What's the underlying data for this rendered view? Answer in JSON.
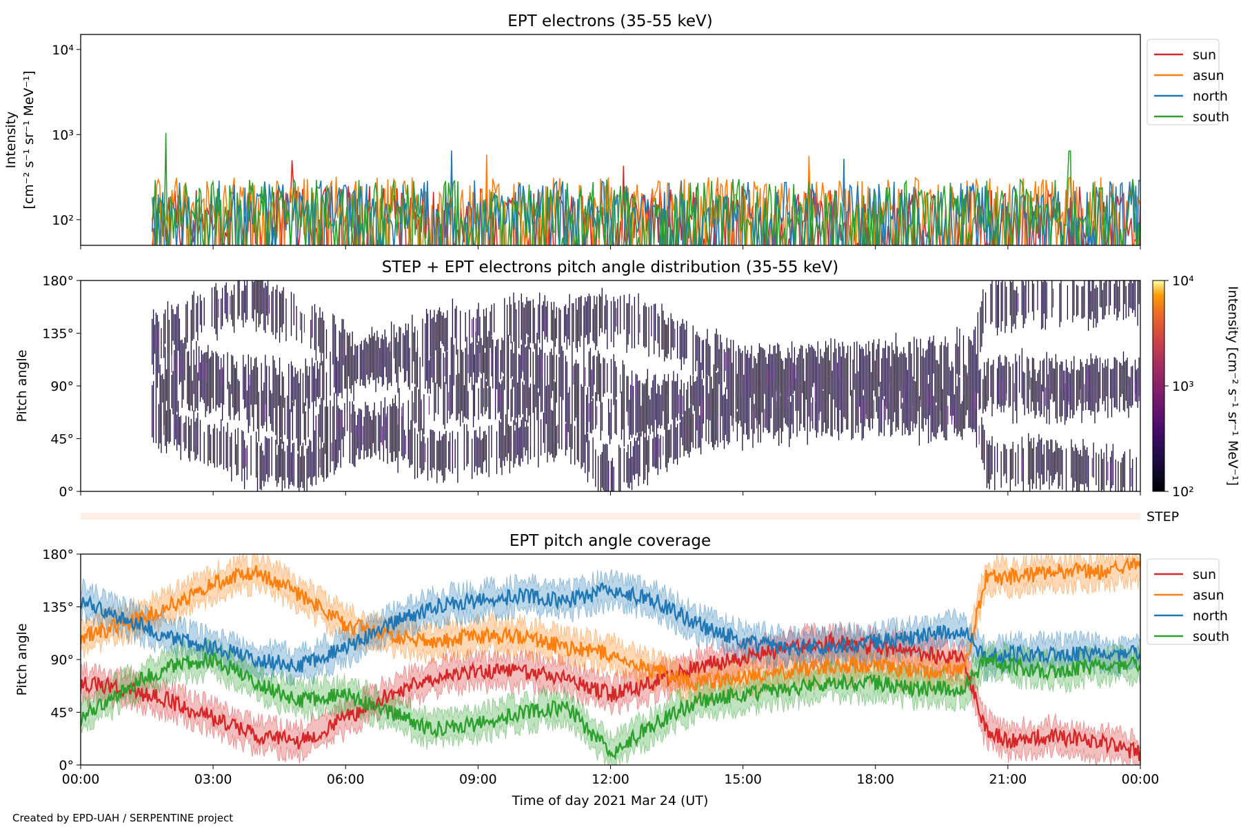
{
  "chart_data": [
    {
      "type": "line",
      "title": "EPT electrons (35-55 keV)",
      "ylabel_line1": "Intensity",
      "ylabel_line2": "[cm⁻² s⁻¹ sr⁻¹ MeV⁻¹]",
      "yscale": "log",
      "ylim": [
        50,
        15000
      ],
      "yticks": [
        100,
        1000,
        10000
      ],
      "ytick_labels": [
        "10²",
        "10³",
        "10⁴"
      ],
      "xlim_hours": [
        0,
        24
      ],
      "data_start_hour": 1.62,
      "series": [
        {
          "name": "sun",
          "color": "#d62728",
          "typical": [
            50,
            250
          ],
          "peaks": [
            [
              4.8,
              500
            ],
            [
              12.3,
              430
            ]
          ]
        },
        {
          "name": "asun",
          "color": "#ff7f0e",
          "typical": [
            80,
            320
          ],
          "peaks": [
            [
              9.2,
              580
            ],
            [
              16.5,
              560
            ]
          ]
        },
        {
          "name": "north",
          "color": "#1f77b4",
          "typical": [
            70,
            290
          ],
          "peaks": [
            [
              8.4,
              650
            ],
            [
              17.3,
              520
            ]
          ]
        },
        {
          "name": "south",
          "color": "#2ca02c",
          "typical": [
            60,
            300
          ],
          "peaks": [
            [
              1.93,
              1050
            ],
            [
              22.4,
              640
            ]
          ]
        }
      ],
      "legend": "outside-right"
    },
    {
      "type": "heatmap",
      "title": "STEP + EPT electrons pitch angle distribution (35-55 keV)",
      "ylabel": "Pitch angle",
      "ylim": [
        0,
        180
      ],
      "yticks": [
        0,
        45,
        90,
        135,
        180
      ],
      "ytick_labels": [
        "0°",
        "45°",
        "90°",
        "135°",
        "180°"
      ],
      "colorbar": {
        "label": "Intensity [cm⁻² s⁻¹ sr⁻¹ MeV⁻¹]",
        "scale": "log",
        "range": [
          100,
          10000
        ],
        "tick_labels": [
          "10²",
          "10³",
          "10⁴"
        ],
        "colormap": "inferno"
      },
      "step_label": "STEP"
    },
    {
      "type": "line",
      "title": "EPT pitch angle coverage",
      "ylabel": "Pitch angle",
      "ylim": [
        0,
        180
      ],
      "yticks": [
        0,
        45,
        90,
        135,
        180
      ],
      "ytick_labels": [
        "0°",
        "45°",
        "90°",
        "135°",
        "180°"
      ],
      "xlabel": "Time of day 2021 Mar 24 (UT)",
      "x_tick_labels": [
        "00:00",
        "03:00",
        "06:00",
        "09:00",
        "12:00",
        "15:00",
        "18:00",
        "21:00",
        "00:00"
      ],
      "hours": [
        0,
        1,
        2,
        3,
        4,
        5,
        6,
        7,
        8,
        9,
        10,
        11,
        12,
        13,
        14,
        15,
        16,
        17,
        18,
        19,
        20,
        20.5,
        21,
        22,
        23,
        24
      ],
      "series": [
        {
          "name": "sun",
          "color": "#d62728",
          "values": [
            70,
            65,
            55,
            40,
            25,
            20,
            40,
            60,
            75,
            80,
            80,
            75,
            60,
            70,
            85,
            90,
            100,
            105,
            100,
            95,
            90,
            30,
            20,
            25,
            20,
            10
          ]
        },
        {
          "name": "asun",
          "color": "#ff7f0e",
          "values": [
            110,
            120,
            135,
            155,
            165,
            145,
            120,
            110,
            105,
            110,
            110,
            100,
            95,
            80,
            70,
            75,
            80,
            85,
            85,
            80,
            80,
            160,
            160,
            165,
            165,
            170
          ]
        },
        {
          "name": "north",
          "color": "#1f77b4",
          "values": [
            140,
            125,
            110,
            100,
            90,
            85,
            100,
            120,
            135,
            140,
            145,
            140,
            150,
            140,
            120,
            105,
            100,
            100,
            105,
            110,
            115,
            90,
            95,
            95,
            95,
            95
          ]
        },
        {
          "name": "south",
          "color": "#2ca02c",
          "values": [
            40,
            65,
            85,
            90,
            70,
            55,
            60,
            45,
            30,
            35,
            45,
            50,
            10,
            35,
            55,
            60,
            65,
            70,
            70,
            65,
            65,
            90,
            85,
            80,
            85,
            85
          ]
        }
      ],
      "band_halfwidth_deg": 12,
      "legend": "outside-right"
    }
  ],
  "footer": {
    "credit": "Created by EPD-UAH / SERPENTINE project"
  }
}
